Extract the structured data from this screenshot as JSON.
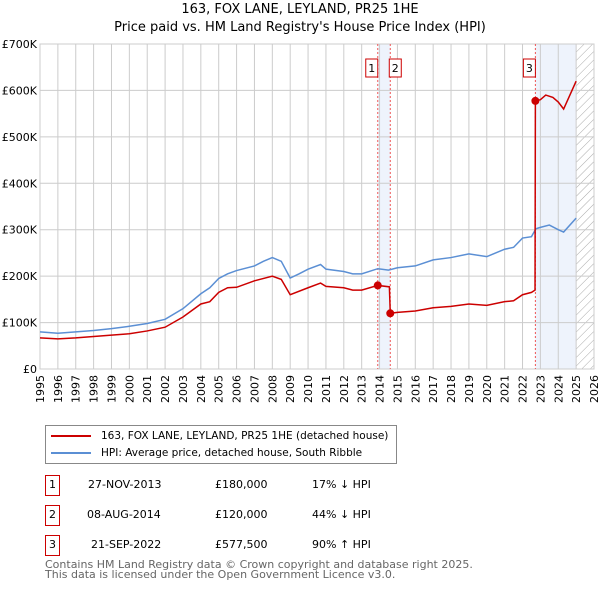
{
  "chart_data": {
    "type": "line",
    "title": "163, FOX LANE, LEYLAND, PR25 1HE",
    "subtitle": "Price paid vs. HM Land Registry's House Price Index (HPI)",
    "xlim": [
      1995,
      2026
    ],
    "ylim": [
      0,
      700000
    ],
    "x_ticks": [
      "1995",
      "1996",
      "1997",
      "1998",
      "1999",
      "2000",
      "2001",
      "2002",
      "2003",
      "2004",
      "2005",
      "2006",
      "2007",
      "2008",
      "2009",
      "2010",
      "2011",
      "2012",
      "2013",
      "2014",
      "2015",
      "2016",
      "2017",
      "2018",
      "2019",
      "2020",
      "2021",
      "2022",
      "2023",
      "2024",
      "2025",
      "2026"
    ],
    "y_ticks": [
      {
        "v": 0,
        "label": "£0"
      },
      {
        "v": 100000,
        "label": "£100K"
      },
      {
        "v": 200000,
        "label": "£200K"
      },
      {
        "v": 300000,
        "label": "£300K"
      },
      {
        "v": 400000,
        "label": "£400K"
      },
      {
        "v": 500000,
        "label": "£500K"
      },
      {
        "v": 600000,
        "label": "£600K"
      },
      {
        "v": 700000,
        "label": "£700K"
      }
    ],
    "grid": true,
    "series": [
      {
        "name": "163, FOX LANE, LEYLAND, PR25 1HE (detached house)",
        "color": "#cc0000",
        "x": [
          1995,
          1996,
          1997,
          1998,
          1999,
          2000,
          2001,
          2002,
          2003,
          2004,
          2004.5,
          2005,
          2005.5,
          2006,
          2007,
          2008,
          2008.5,
          2009,
          2010,
          2010.7,
          2011,
          2012,
          2012.5,
          2013,
          2013.9,
          2014.55,
          2014.6,
          2015,
          2016,
          2017,
          2018,
          2019,
          2020,
          2021,
          2021.5,
          2022,
          2022.5,
          2022.7,
          2022.72,
          2023,
          2023.3,
          2023.7,
          2024,
          2024.3,
          2025
        ],
        "y": [
          67000,
          65000,
          67000,
          70000,
          73000,
          76000,
          82000,
          90000,
          112000,
          140000,
          145000,
          165000,
          175000,
          176000,
          190000,
          200000,
          193000,
          160000,
          175000,
          185000,
          178000,
          175000,
          170000,
          170000,
          180000,
          177000,
          120000,
          122000,
          125000,
          132000,
          135000,
          140000,
          137000,
          145000,
          147000,
          160000,
          165000,
          170000,
          577500,
          580000,
          590000,
          585000,
          575000,
          560000,
          620000
        ]
      },
      {
        "name": "HPI: Average price, detached house, South Ribble",
        "color": "#5b8fd4",
        "x": [
          1995,
          1996,
          1997,
          1998,
          1999,
          2000,
          2001,
          2002,
          2003,
          2004,
          2004.5,
          2005,
          2005.5,
          2006,
          2007,
          2007.5,
          2008,
          2008.5,
          2009,
          2009.5,
          2010,
          2010.7,
          2011,
          2012,
          2012.5,
          2013,
          2013.9,
          2014.5,
          2015,
          2016,
          2017,
          2018,
          2019,
          2020,
          2021,
          2021.5,
          2022,
          2022.5,
          2022.75,
          2023,
          2023.5,
          2024,
          2024.3,
          2025
        ],
        "y": [
          80000,
          77000,
          80000,
          83000,
          87000,
          92000,
          98000,
          107000,
          130000,
          162000,
          175000,
          195000,
          205000,
          212000,
          222000,
          232000,
          240000,
          232000,
          196000,
          205000,
          215000,
          225000,
          215000,
          210000,
          205000,
          205000,
          216000,
          213000,
          218000,
          222000,
          235000,
          240000,
          248000,
          242000,
          258000,
          262000,
          282000,
          285000,
          302000,
          305000,
          310000,
          300000,
          295000,
          325000
        ]
      }
    ],
    "transactions": [
      {
        "id": "1",
        "x": 2013.9,
        "date": "27-NOV-2013",
        "price": "£180,000",
        "value": 180000,
        "hpi": "17% ↓ HPI"
      },
      {
        "id": "2",
        "x": 2014.6,
        "date": "08-AUG-2014",
        "price": "£120,000",
        "value": 120000,
        "hpi": "44% ↓ HPI"
      },
      {
        "id": "3",
        "x": 2022.72,
        "date": "21-SEP-2022",
        "price": "£577,500",
        "value": 577500,
        "hpi": "90% ↑ HPI"
      }
    ],
    "shaded": [
      [
        2013.9,
        2014.6
      ],
      [
        2022.72,
        2025.0
      ]
    ],
    "hatched_from": 2025.0
  },
  "footer": {
    "line1": "Contains HM Land Registry data © Crown copyright and database right 2025.",
    "line2": "This data is licensed under the Open Government Licence v3.0."
  }
}
